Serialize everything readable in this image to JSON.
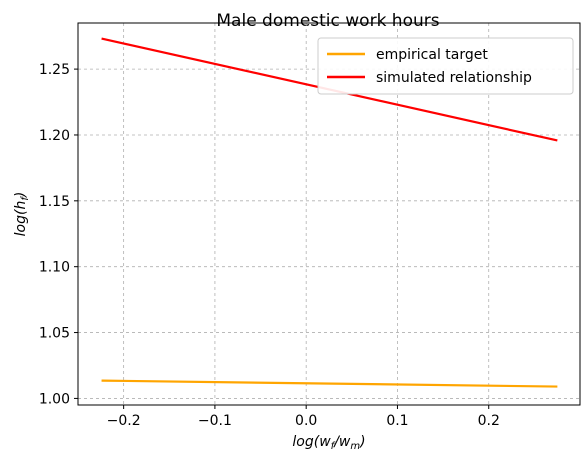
{
  "chart_data": {
    "type": "line",
    "title": "Male domestic work hours",
    "xlabel": "log(w_f/w_m)",
    "ylabel": "log(h_f)",
    "xlim": [
      -0.25,
      0.3
    ],
    "ylim": [
      0.995,
      1.285
    ],
    "xticks": [
      -0.2,
      -0.1,
      0.0,
      0.1,
      0.2
    ],
    "xtick_labels": [
      "−0.2",
      "−0.1",
      "0.0",
      "0.1",
      "0.2"
    ],
    "yticks": [
      1.0,
      1.05,
      1.1,
      1.15,
      1.2,
      1.25
    ],
    "ytick_labels": [
      "1.00",
      "1.05",
      "1.10",
      "1.15",
      "1.20",
      "1.25"
    ],
    "grid": true,
    "legend_position": "top-right",
    "series": [
      {
        "name": "empirical target",
        "color": "#ffa500",
        "x": [
          -0.223,
          0.274
        ],
        "y": [
          1.0135,
          1.009
        ]
      },
      {
        "name": "simulated relationship",
        "color": "#ff0000",
        "x": [
          -0.223,
          0.274
        ],
        "y": [
          1.273,
          1.196
        ]
      }
    ]
  }
}
